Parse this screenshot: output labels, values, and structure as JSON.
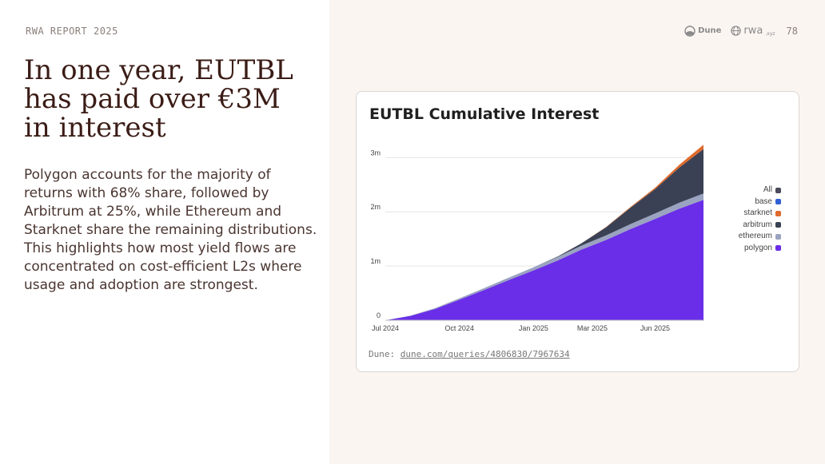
{
  "header": {
    "report_label": "RWA REPORT 2025",
    "page_number": "78",
    "logos": [
      {
        "name": "Dune",
        "icon": "dune-logo-icon"
      },
      {
        "name": "rwa",
        "suffix": ".xyz",
        "icon": "rwa-logo-icon"
      }
    ]
  },
  "headline": {
    "lines": [
      "In one year, EUTBL",
      "has paid over €3M",
      "in interest"
    ]
  },
  "body_text": "Polygon accounts for the majority of returns with 68% share, followed by Arbitrum at 25%, while Ethereum and Starknet share the remaining distributions. This highlights how most yield flows are concentrated on cost-efficient L2s where usage and adoption are strongest.",
  "card": {
    "source_prefix": "Dune:",
    "source_link": "dune.com/queries/4806830/7967634"
  },
  "colors": {
    "all": "#4a4a5c",
    "base": "#2f5fd6",
    "starknet": "#e06a2c",
    "arbitrum": "#3a4154",
    "ethereum": "#9aa3c0",
    "polygon": "#6a2ee8",
    "left_background": "#ffffff",
    "right_background": "#fbf5f2",
    "headline": "#3b1c16"
  },
  "chart_data": {
    "type": "area",
    "stacked": true,
    "title": "EUTBL Cumulative Interest",
    "xlabel": "",
    "ylabel": "",
    "x_ticks": [
      "Jul 2024",
      "Oct 2024",
      "Jan 2025",
      "Mar 2025",
      "Jun 2025"
    ],
    "y_ticks": [
      "0",
      "1m",
      "2m",
      "3m"
    ],
    "ylim": [
      0,
      3300000
    ],
    "xlim": [
      "2024-07-01",
      "2025-08-01"
    ],
    "x": [
      "2024-07-01",
      "2024-08-01",
      "2024-09-01",
      "2024-10-01",
      "2024-11-01",
      "2024-12-01",
      "2025-01-01",
      "2025-02-01",
      "2025-03-01",
      "2025-04-01",
      "2025-05-01",
      "2025-06-01",
      "2025-07-01",
      "2025-07-31"
    ],
    "series": [
      {
        "name": "polygon",
        "values": [
          0,
          80000,
          210000,
          380000,
          560000,
          740000,
          920000,
          1110000,
          1300000,
          1480000,
          1680000,
          1870000,
          2060000,
          2220000
        ]
      },
      {
        "name": "ethereum",
        "values": [
          0,
          5000,
          15000,
          25000,
          35000,
          45000,
          55000,
          65000,
          75000,
          85000,
          92000,
          100000,
          108000,
          118000
        ]
      },
      {
        "name": "arbitrum",
        "values": [
          0,
          0,
          0,
          0,
          0,
          0,
          0,
          10000,
          40000,
          150000,
          300000,
          450000,
          650000,
          820000
        ]
      },
      {
        "name": "starknet",
        "values": [
          0,
          0,
          0,
          0,
          0,
          0,
          0,
          0,
          0,
          5000,
          12000,
          25000,
          50000,
          80000
        ]
      },
      {
        "name": "base",
        "values": [
          0,
          0,
          0,
          0,
          0,
          0,
          0,
          0,
          0,
          0,
          0,
          0,
          0,
          0
        ]
      }
    ],
    "legend": [
      "All",
      "base",
      "starknet",
      "arbitrum",
      "ethereum",
      "polygon"
    ],
    "legend_position": "right",
    "grid": true
  }
}
